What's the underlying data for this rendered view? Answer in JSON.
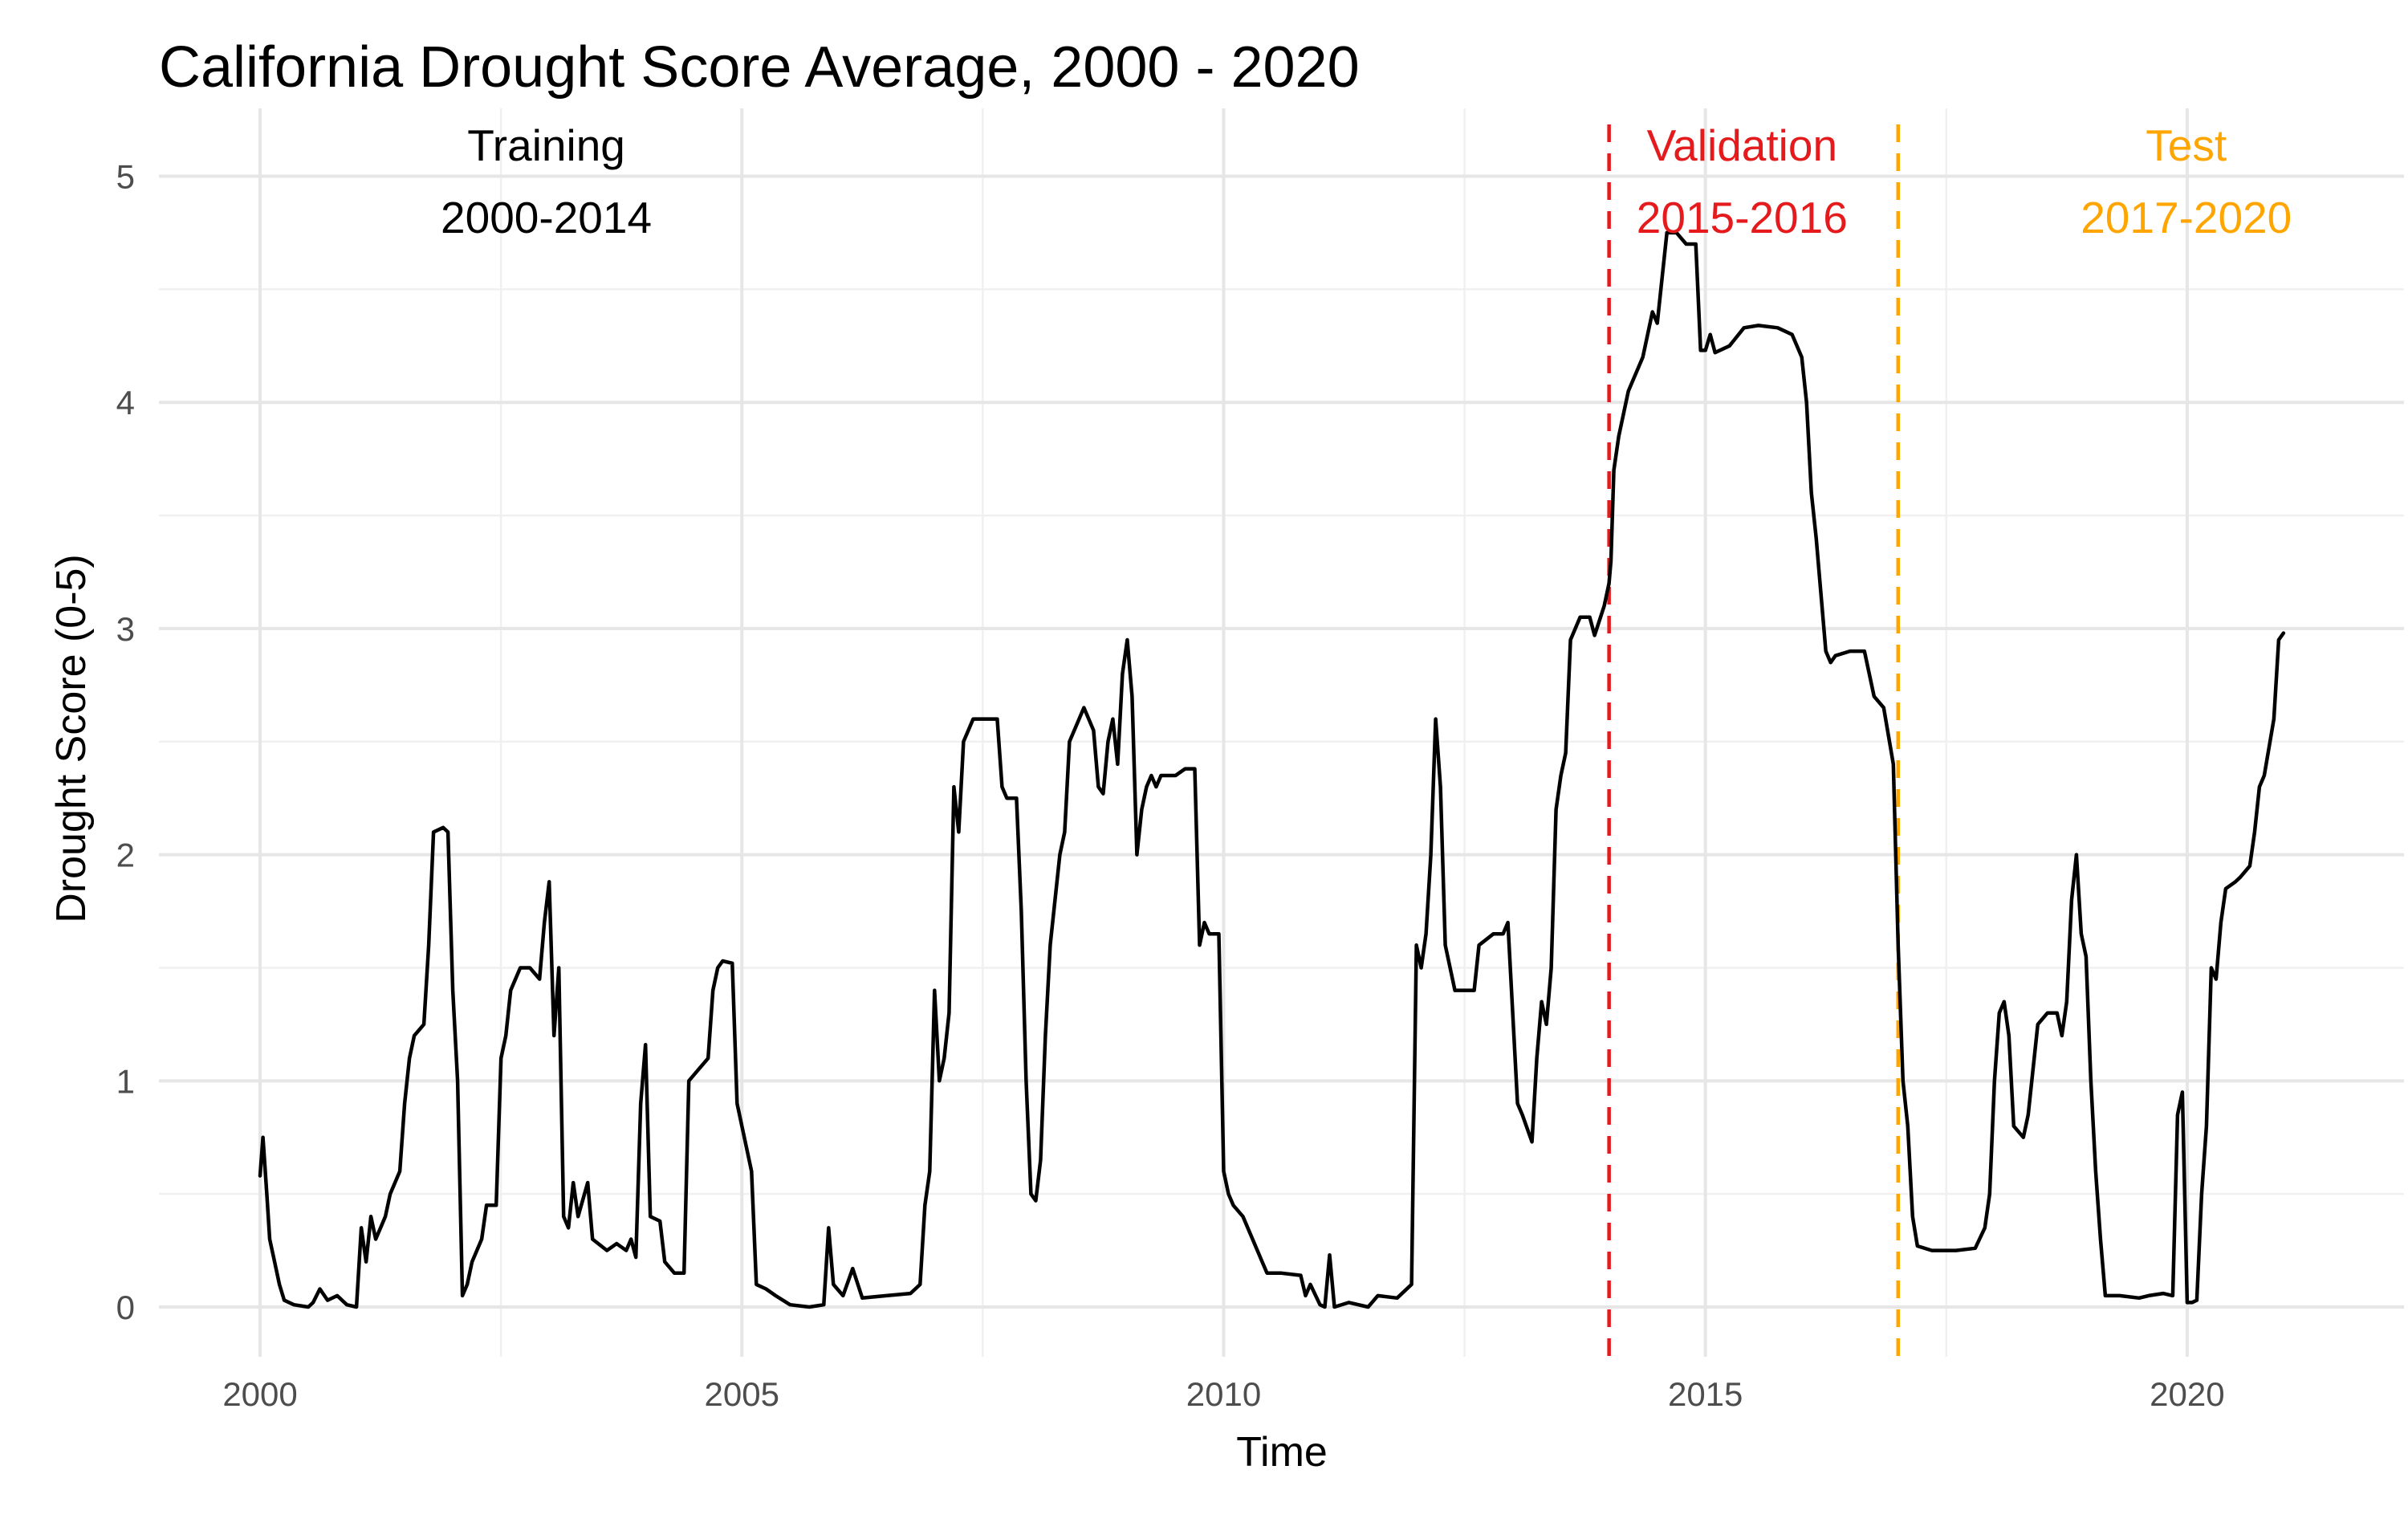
{
  "chart_data": {
    "type": "line",
    "title": "California Drought Score Average, 2000 - 2020",
    "xlabel": "Time",
    "ylabel": "Drought Score (0-5)",
    "xlim": [
      1998.95,
      2022.25
    ],
    "ylim": [
      -0.22,
      5.3
    ],
    "x_ticks": [
      2000,
      2005,
      2010,
      2015,
      2020
    ],
    "y_ticks": [
      0,
      1,
      2,
      3,
      4,
      5
    ],
    "x_tick_labels": [
      "2000",
      "2005",
      "2010",
      "2015",
      "2020"
    ],
    "y_tick_labels": [
      "0",
      "1",
      "2",
      "3",
      "4",
      "5"
    ],
    "grid": true,
    "legend": "none",
    "colors": {
      "series": "#000000",
      "validation": "#e41a1c",
      "test": "#ffa500",
      "training": "#000000"
    },
    "split_lines": [
      {
        "x": 2014.0,
        "color": "#e41a1c",
        "style": "dashed"
      },
      {
        "x": 2017.0,
        "color": "#ffa500",
        "style": "dashed"
      }
    ],
    "annotations": [
      {
        "name": "training-label",
        "lines": [
          "Training",
          "2000-2014"
        ],
        "x": 2002.97,
        "color": "#000000"
      },
      {
        "name": "validation-label",
        "lines": [
          "Validation",
          "2015-2016"
        ],
        "x": 2015.38,
        "color": "#e41a1c"
      },
      {
        "name": "test-label",
        "lines": [
          "Test",
          "2017-2020"
        ],
        "x": 2019.99,
        "color": "#ffa500"
      }
    ],
    "series": [
      {
        "points": [
          [
            2000.0,
            0.58
          ],
          [
            2000.03,
            0.75
          ],
          [
            2000.07,
            0.5
          ],
          [
            2000.1,
            0.3
          ],
          [
            2000.15,
            0.2
          ],
          [
            2000.2,
            0.1
          ],
          [
            2000.25,
            0.03
          ],
          [
            2000.35,
            0.01
          ],
          [
            2000.5,
            0.0
          ],
          [
            2000.55,
            0.02
          ],
          [
            2000.62,
            0.08
          ],
          [
            2000.7,
            0.03
          ],
          [
            2000.8,
            0.05
          ],
          [
            2000.9,
            0.01
          ],
          [
            2001.0,
            0.0
          ],
          [
            2001.05,
            0.35
          ],
          [
            2001.1,
            0.2
          ],
          [
            2001.15,
            0.4
          ],
          [
            2001.2,
            0.3
          ],
          [
            2001.3,
            0.4
          ],
          [
            2001.35,
            0.5
          ],
          [
            2001.45,
            0.6
          ],
          [
            2001.5,
            0.9
          ],
          [
            2001.55,
            1.1
          ],
          [
            2001.6,
            1.2
          ],
          [
            2001.7,
            1.25
          ],
          [
            2001.75,
            1.6
          ],
          [
            2001.8,
            2.1
          ],
          [
            2001.9,
            2.12
          ],
          [
            2001.95,
            2.1
          ],
          [
            2002.0,
            1.4
          ],
          [
            2002.05,
            1.0
          ],
          [
            2002.1,
            0.05
          ],
          [
            2002.15,
            0.1
          ],
          [
            2002.2,
            0.2
          ],
          [
            2002.3,
            0.3
          ],
          [
            2002.35,
            0.45
          ],
          [
            2002.45,
            0.45
          ],
          [
            2002.5,
            1.1
          ],
          [
            2002.55,
            1.2
          ],
          [
            2002.6,
            1.4
          ],
          [
            2002.7,
            1.5
          ],
          [
            2002.8,
            1.5
          ],
          [
            2002.9,
            1.45
          ],
          [
            2002.95,
            1.7
          ],
          [
            2003.0,
            1.88
          ],
          [
            2003.05,
            1.2
          ],
          [
            2003.1,
            1.5
          ],
          [
            2003.15,
            0.4
          ],
          [
            2003.2,
            0.35
          ],
          [
            2003.25,
            0.55
          ],
          [
            2003.3,
            0.4
          ],
          [
            2003.4,
            0.55
          ],
          [
            2003.45,
            0.3
          ],
          [
            2003.6,
            0.25
          ],
          [
            2003.7,
            0.28
          ],
          [
            2003.8,
            0.25
          ],
          [
            2003.85,
            0.3
          ],
          [
            2003.9,
            0.22
          ],
          [
            2003.95,
            0.9
          ],
          [
            2004.0,
            1.16
          ],
          [
            2004.05,
            0.4
          ],
          [
            2004.15,
            0.38
          ],
          [
            2004.2,
            0.2
          ],
          [
            2004.3,
            0.15
          ],
          [
            2004.4,
            0.15
          ],
          [
            2004.45,
            1.0
          ],
          [
            2004.55,
            1.05
          ],
          [
            2004.65,
            1.1
          ],
          [
            2004.7,
            1.4
          ],
          [
            2004.75,
            1.5
          ],
          [
            2004.8,
            1.53
          ],
          [
            2004.9,
            1.52
          ],
          [
            2004.95,
            0.9
          ],
          [
            2005.0,
            0.8
          ],
          [
            2005.05,
            0.7
          ],
          [
            2005.1,
            0.6
          ],
          [
            2005.15,
            0.1
          ],
          [
            2005.25,
            0.08
          ],
          [
            2005.35,
            0.05
          ],
          [
            2005.5,
            0.01
          ],
          [
            2005.7,
            0.0
          ],
          [
            2005.85,
            0.01
          ],
          [
            2005.9,
            0.35
          ],
          [
            2005.95,
            0.1
          ],
          [
            2006.05,
            0.05
          ],
          [
            2006.15,
            0.17
          ],
          [
            2006.25,
            0.04
          ],
          [
            2006.5,
            0.05
          ],
          [
            2006.75,
            0.06
          ],
          [
            2006.85,
            0.1
          ],
          [
            2006.9,
            0.45
          ],
          [
            2006.95,
            0.6
          ],
          [
            2007.0,
            1.4
          ],
          [
            2007.05,
            1.0
          ],
          [
            2007.1,
            1.1
          ],
          [
            2007.15,
            1.3
          ],
          [
            2007.2,
            2.3
          ],
          [
            2007.25,
            2.1
          ],
          [
            2007.3,
            2.5
          ],
          [
            2007.4,
            2.6
          ],
          [
            2007.5,
            2.6
          ],
          [
            2007.65,
            2.6
          ],
          [
            2007.7,
            2.3
          ],
          [
            2007.75,
            2.25
          ],
          [
            2007.85,
            2.25
          ],
          [
            2007.9,
            1.75
          ],
          [
            2007.95,
            1.0
          ],
          [
            2008.0,
            0.5
          ],
          [
            2008.05,
            0.47
          ],
          [
            2008.1,
            0.65
          ],
          [
            2008.15,
            1.2
          ],
          [
            2008.2,
            1.6
          ],
          [
            2008.3,
            2.0
          ],
          [
            2008.35,
            2.1
          ],
          [
            2008.4,
            2.5
          ],
          [
            2008.5,
            2.6
          ],
          [
            2008.55,
            2.65
          ],
          [
            2008.65,
            2.55
          ],
          [
            2008.7,
            2.3
          ],
          [
            2008.75,
            2.27
          ],
          [
            2008.8,
            2.5
          ],
          [
            2008.85,
            2.6
          ],
          [
            2008.9,
            2.4
          ],
          [
            2008.95,
            2.8
          ],
          [
            2009.0,
            2.95
          ],
          [
            2009.05,
            2.7
          ],
          [
            2009.1,
            2.0
          ],
          [
            2009.15,
            2.2
          ],
          [
            2009.2,
            2.3
          ],
          [
            2009.25,
            2.35
          ],
          [
            2009.3,
            2.3
          ],
          [
            2009.35,
            2.35
          ],
          [
            2009.5,
            2.35
          ],
          [
            2009.6,
            2.38
          ],
          [
            2009.7,
            2.38
          ],
          [
            2009.75,
            1.6
          ],
          [
            2009.8,
            1.7
          ],
          [
            2009.85,
            1.65
          ],
          [
            2009.95,
            1.65
          ],
          [
            2010.0,
            0.6
          ],
          [
            2010.05,
            0.5
          ],
          [
            2010.1,
            0.45
          ],
          [
            2010.2,
            0.4
          ],
          [
            2010.3,
            0.3
          ],
          [
            2010.4,
            0.2
          ],
          [
            2010.45,
            0.15
          ],
          [
            2010.6,
            0.15
          ],
          [
            2010.8,
            0.14
          ],
          [
            2010.85,
            0.05
          ],
          [
            2010.9,
            0.1
          ],
          [
            2011.0,
            0.01
          ],
          [
            2011.05,
            0.0
          ],
          [
            2011.1,
            0.23
          ],
          [
            2011.15,
            0.0
          ],
          [
            2011.3,
            0.02
          ],
          [
            2011.5,
            0.0
          ],
          [
            2011.6,
            0.05
          ],
          [
            2011.8,
            0.04
          ],
          [
            2011.95,
            0.1
          ],
          [
            2012.0,
            1.6
          ],
          [
            2012.05,
            1.5
          ],
          [
            2012.1,
            1.65
          ],
          [
            2012.15,
            2.0
          ],
          [
            2012.2,
            2.6
          ],
          [
            2012.25,
            2.3
          ],
          [
            2012.3,
            1.6
          ],
          [
            2012.4,
            1.4
          ],
          [
            2012.5,
            1.4
          ],
          [
            2012.6,
            1.4
          ],
          [
            2012.65,
            1.6
          ],
          [
            2012.8,
            1.65
          ],
          [
            2012.9,
            1.65
          ],
          [
            2012.95,
            1.7
          ],
          [
            2013.0,
            1.3
          ],
          [
            2013.05,
            0.9
          ],
          [
            2013.1,
            0.85
          ],
          [
            2013.2,
            0.73
          ],
          [
            2013.25,
            1.1
          ],
          [
            2013.3,
            1.35
          ],
          [
            2013.35,
            1.25
          ],
          [
            2013.4,
            1.5
          ],
          [
            2013.45,
            2.2
          ],
          [
            2013.5,
            2.35
          ],
          [
            2013.55,
            2.45
          ],
          [
            2013.6,
            2.95
          ],
          [
            2013.7,
            3.05
          ],
          [
            2013.8,
            3.05
          ],
          [
            2013.85,
            2.97
          ],
          [
            2013.95,
            3.1
          ],
          [
            2014.0,
            3.2
          ],
          [
            2014.02,
            3.3
          ],
          [
            2014.05,
            3.7
          ],
          [
            2014.1,
            3.85
          ],
          [
            2014.2,
            4.05
          ],
          [
            2014.25,
            4.1
          ],
          [
            2014.35,
            4.2
          ],
          [
            2014.45,
            4.4
          ],
          [
            2014.5,
            4.35
          ],
          [
            2014.6,
            4.75
          ],
          [
            2014.7,
            4.75
          ],
          [
            2014.8,
            4.7
          ],
          [
            2014.9,
            4.7
          ],
          [
            2014.95,
            4.23
          ],
          [
            2015.0,
            4.23
          ],
          [
            2015.05,
            4.3
          ],
          [
            2015.1,
            4.22
          ],
          [
            2015.25,
            4.25
          ],
          [
            2015.4,
            4.33
          ],
          [
            2015.55,
            4.34
          ],
          [
            2015.75,
            4.33
          ],
          [
            2015.9,
            4.3
          ],
          [
            2016.0,
            4.2
          ],
          [
            2016.05,
            4.0
          ],
          [
            2016.1,
            3.6
          ],
          [
            2016.15,
            3.4
          ],
          [
            2016.2,
            3.15
          ],
          [
            2016.25,
            2.9
          ],
          [
            2016.3,
            2.85
          ],
          [
            2016.35,
            2.88
          ],
          [
            2016.5,
            2.9
          ],
          [
            2016.65,
            2.9
          ],
          [
            2016.75,
            2.7
          ],
          [
            2016.85,
            2.65
          ],
          [
            2016.95,
            2.4
          ],
          [
            2017.0,
            1.6
          ],
          [
            2017.05,
            1.0
          ],
          [
            2017.1,
            0.8
          ],
          [
            2017.15,
            0.4
          ],
          [
            2017.2,
            0.27
          ],
          [
            2017.35,
            0.25
          ],
          [
            2017.6,
            0.25
          ],
          [
            2017.8,
            0.26
          ],
          [
            2017.9,
            0.35
          ],
          [
            2017.95,
            0.5
          ],
          [
            2018.0,
            1.0
          ],
          [
            2018.05,
            1.3
          ],
          [
            2018.1,
            1.35
          ],
          [
            2018.15,
            1.2
          ],
          [
            2018.2,
            0.8
          ],
          [
            2018.3,
            0.75
          ],
          [
            2018.35,
            0.85
          ],
          [
            2018.45,
            1.25
          ],
          [
            2018.55,
            1.3
          ],
          [
            2018.65,
            1.3
          ],
          [
            2018.7,
            1.2
          ],
          [
            2018.75,
            1.35
          ],
          [
            2018.8,
            1.8
          ],
          [
            2018.85,
            2.0
          ],
          [
            2018.9,
            1.65
          ],
          [
            2018.95,
            1.55
          ],
          [
            2019.0,
            1.0
          ],
          [
            2019.05,
            0.6
          ],
          [
            2019.1,
            0.3
          ],
          [
            2019.15,
            0.05
          ],
          [
            2019.3,
            0.05
          ],
          [
            2019.5,
            0.04
          ],
          [
            2019.6,
            0.05
          ],
          [
            2019.75,
            0.06
          ],
          [
            2019.85,
            0.05
          ],
          [
            2019.9,
            0.85
          ],
          [
            2019.95,
            0.95
          ],
          [
            2020.0,
            0.02
          ],
          [
            2020.05,
            0.02
          ],
          [
            2020.1,
            0.03
          ],
          [
            2020.15,
            0.5
          ],
          [
            2020.2,
            0.8
          ],
          [
            2020.25,
            1.5
          ],
          [
            2020.3,
            1.45
          ],
          [
            2020.35,
            1.7
          ],
          [
            2020.4,
            1.85
          ],
          [
            2020.5,
            1.88
          ],
          [
            2020.55,
            1.9
          ],
          [
            2020.65,
            1.95
          ],
          [
            2020.7,
            2.1
          ],
          [
            2020.75,
            2.3
          ],
          [
            2020.8,
            2.35
          ],
          [
            2020.9,
            2.6
          ],
          [
            2020.95,
            2.95
          ],
          [
            2021.0,
            2.98
          ]
        ]
      }
    ]
  }
}
